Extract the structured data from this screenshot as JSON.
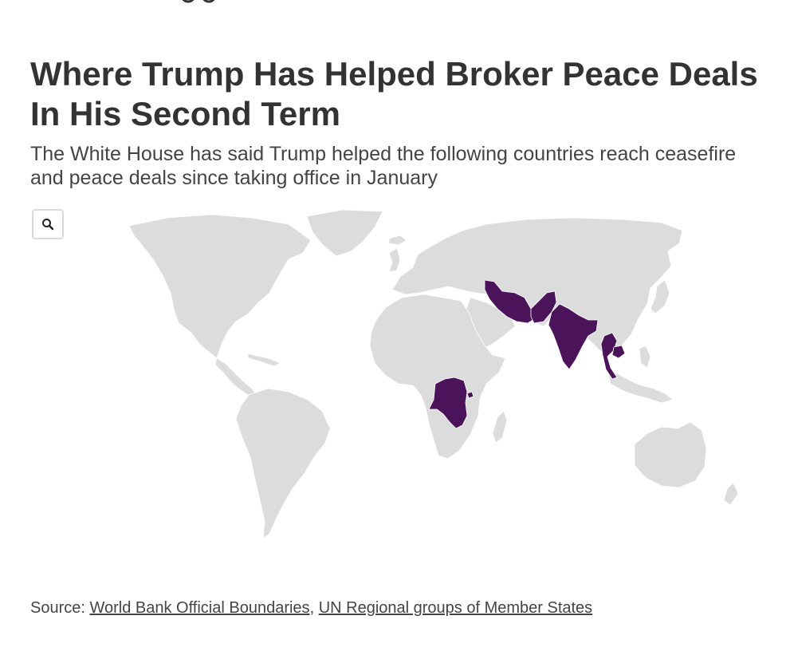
{
  "header": {
    "title": "Where Trump Has Helped Broker Peace Deals In His Second Term",
    "subtitle": "The White House has said Trump helped the following countries reach ceasefire and peace deals since taking office in January"
  },
  "controls": {
    "zoom_icon": "search-icon"
  },
  "map": {
    "type": "choropleth-world",
    "highlight_color": "#4b145a",
    "base_color": "#dcdcdc",
    "highlighted_regions": [
      "Iran",
      "Pakistan",
      "India",
      "Thailand",
      "Cambodia",
      "Democratic Republic of the Congo",
      "Rwanda"
    ]
  },
  "footer": {
    "source_prefix": "Source: ",
    "link1": "World Bank Official Boundaries",
    "separator": ", ",
    "link2": "UN Regional groups of Member States"
  }
}
